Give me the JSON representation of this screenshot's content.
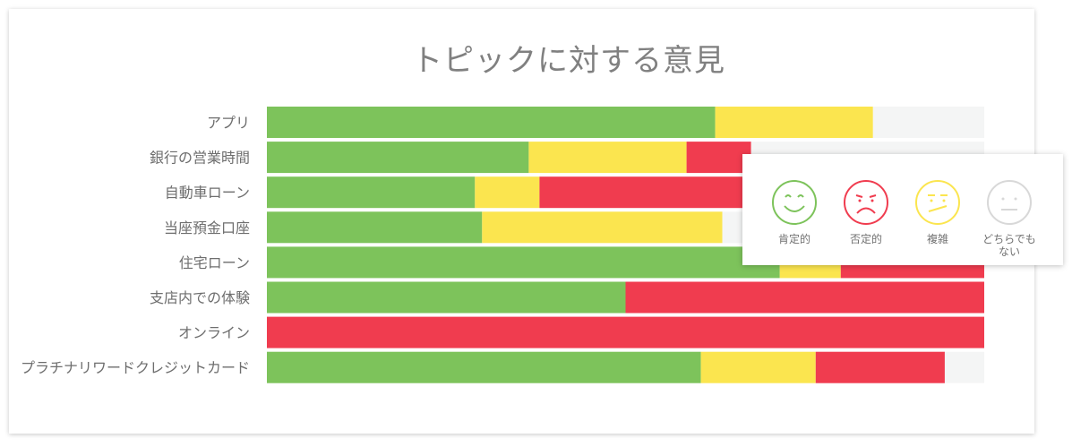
{
  "chart_data": {
    "type": "bar",
    "stacked": true,
    "orientation": "horizontal",
    "title": "トピックに対する意見",
    "categories": [
      "アプリ",
      "銀行の営業時間",
      "自動車ローン",
      "当座預金口座",
      "住宅ローン",
      "支店内での体験",
      "オンライン",
      "プラチナリワードクレジットカード"
    ],
    "series": [
      {
        "name": "肯定的",
        "color": "#7dc35b",
        "values": [
          62.5,
          36.5,
          29.0,
          30.0,
          71.5,
          50.0,
          0.0,
          60.5
        ]
      },
      {
        "name": "複雑",
        "color": "#fbe54f",
        "values": [
          22.0,
          22.0,
          9.0,
          33.5,
          8.5,
          0.0,
          0.0,
          16.0
        ]
      },
      {
        "name": "否定的",
        "color": "#f03c4f",
        "values": [
          0.0,
          9.0,
          52.0,
          0.0,
          20.0,
          50.0,
          100.0,
          18.0
        ]
      },
      {
        "name": "どちらでもない",
        "color": "#f4f5f5",
        "values": [
          15.5,
          32.5,
          10.0,
          36.5,
          0.0,
          0.0,
          0.0,
          5.5
        ]
      }
    ],
    "xlim": [
      0,
      100
    ],
    "legend_position": "right"
  },
  "legend": {
    "items": [
      {
        "label": "肯定的",
        "icon": "smile-face-icon",
        "color": "#7dc35b"
      },
      {
        "label": "否定的",
        "icon": "frown-face-icon",
        "color": "#f03c4f"
      },
      {
        "label": "複雑",
        "icon": "mixed-face-icon",
        "color": "#fbe54f"
      },
      {
        "label": "どちらでもない",
        "icon": "neutral-face-icon",
        "color": "#d8d8d8"
      }
    ]
  }
}
